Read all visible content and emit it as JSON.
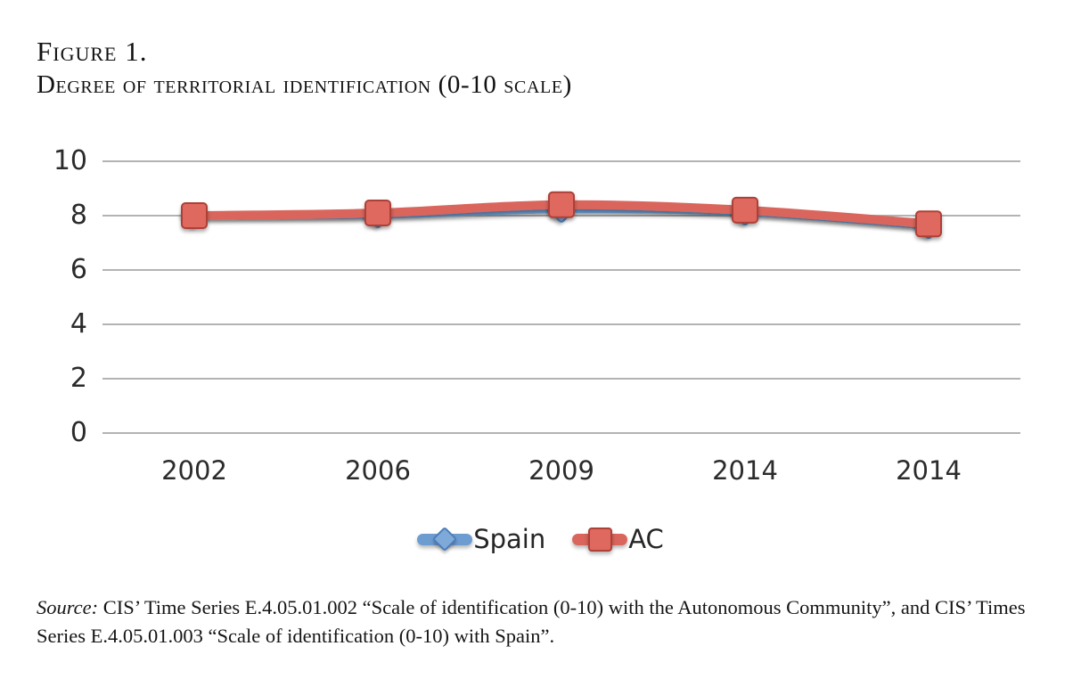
{
  "header": {
    "figure_label": "Figure 1.",
    "title": "Degree of territorial identification (0-10 scale)"
  },
  "source": {
    "label": "Source:",
    "text": " CIS’ Time Series E.4.05.01.002 “Scale of identification (0-10) with the Autonomous Community”, and CIS’ Times Series E.4.05.01.003 “Scale of identification (0-10) with Spain”."
  },
  "chart_data": {
    "type": "line",
    "title": "Degree of territorial identification (0-10 scale)",
    "categories": [
      "2002",
      "2006",
      "2009",
      "2014",
      "2014"
    ],
    "series": [
      {
        "name": "Spain",
        "values": [
          8.0,
          8.0,
          8.2,
          8.1,
          7.6
        ],
        "color": "#6d9cd1",
        "marker": "diamond",
        "marker_fill": "#7fa9d9",
        "marker_stroke": "#4b7db8",
        "line_width": 7
      },
      {
        "name": "AC",
        "values": [
          8.0,
          8.1,
          8.4,
          8.2,
          7.7
        ],
        "color": "#d9655c",
        "marker": "square",
        "marker_fill": "#e0695f",
        "marker_stroke": "#ad4038",
        "line_width": 10
      }
    ],
    "xlabel": "",
    "ylabel": "",
    "ylim": [
      0,
      10
    ],
    "yticks": [
      0,
      2,
      4,
      6,
      8,
      10
    ],
    "grid": true,
    "gridline_color": "#a8a8a8",
    "tick_label_color": "#2b2b2b",
    "legend_position": "bottom"
  }
}
